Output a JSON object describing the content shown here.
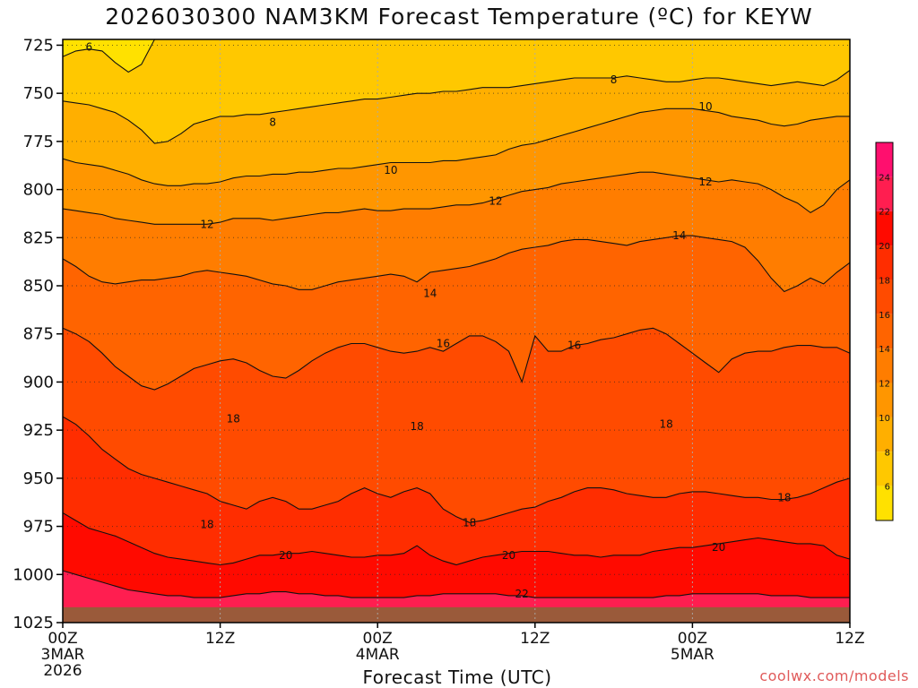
{
  "title": "2026030300 NAM3KM Forecast Temperature (ºC) for KEYW",
  "xlabel": "Forecast Time (UTC)",
  "credit": "coolwx.com/models",
  "chart_data": {
    "type": "heatmap",
    "title": "2026030300 NAM3KM Forecast Temperature (ºC) for KEYW",
    "xlabel": "Forecast Time (UTC)",
    "ylabel": "",
    "x_unit": "forecast hour",
    "xlim": [
      0,
      60
    ],
    "y_unit": "hPa",
    "ylim": [
      1025,
      722
    ],
    "y_ticks": [
      725,
      750,
      775,
      800,
      825,
      850,
      875,
      900,
      925,
      950,
      975,
      1000,
      1025
    ],
    "x_ticks": [
      {
        "hour": 0,
        "label": "00Z",
        "sub": [
          "3MAR",
          "2026"
        ]
      },
      {
        "hour": 12,
        "label": "12Z",
        "sub": []
      },
      {
        "hour": 24,
        "label": "00Z",
        "sub": [
          "4MAR"
        ]
      },
      {
        "hour": 36,
        "label": "12Z",
        "sub": []
      },
      {
        "hour": 48,
        "label": "00Z",
        "sub": [
          "5MAR"
        ]
      },
      {
        "hour": 60,
        "label": "12Z",
        "sub": []
      }
    ],
    "grid": true,
    "colorbar": {
      "placement": "right",
      "labels": [
        "6",
        "8",
        "10",
        "12",
        "14",
        "16",
        "18",
        "20",
        "22",
        "24"
      ],
      "levels": [
        4,
        6,
        8,
        10,
        12,
        14,
        16,
        18,
        20,
        22,
        24,
        26
      ],
      "colors": [
        "#ffe100",
        "#ffc800",
        "#ffaf00",
        "#ff9600",
        "#ff7d00",
        "#ff6400",
        "#ff4b00",
        "#ff2d00",
        "#ff0a00",
        "#ff1e50",
        "#ff0f6e"
      ]
    },
    "ground": {
      "color": "#9a5a3a",
      "top_hpa": 1017
    },
    "contours": [
      {
        "value": 6,
        "label_points": [
          [
            2,
            726
          ]
        ],
        "pressure": [
          731,
          728,
          727,
          728,
          734,
          739,
          735,
          722,
          722,
          722,
          722,
          722,
          722,
          722,
          722,
          722,
          722,
          722,
          722,
          722,
          722,
          722,
          722,
          722,
          722,
          722,
          722,
          722,
          722,
          722,
          722,
          722,
          722,
          722,
          722,
          722,
          722,
          722,
          722,
          722,
          722,
          722,
          722,
          722,
          722,
          722,
          722,
          722,
          722,
          722,
          722,
          722,
          722,
          722,
          722,
          722,
          722,
          722,
          722,
          722,
          722
        ]
      },
      {
        "value": 8,
        "label_points": [
          [
            16,
            765
          ],
          [
            42,
            743
          ]
        ],
        "pressure": [
          754,
          755,
          756,
          758,
          760,
          764,
          769,
          776,
          775,
          771,
          766,
          764,
          762,
          762,
          761,
          761,
          760,
          759,
          758,
          757,
          756,
          755,
          754,
          753,
          753,
          752,
          751,
          750,
          750,
          749,
          749,
          748,
          747,
          747,
          747,
          746,
          745,
          744,
          743,
          742,
          742,
          742,
          742,
          741,
          742,
          743,
          744,
          744,
          743,
          742,
          742,
          743,
          744,
          745,
          746,
          745,
          744,
          745,
          746,
          743,
          738
        ]
      },
      {
        "value": 10,
        "label_points": [
          [
            25,
            790
          ],
          [
            49,
            757
          ]
        ],
        "pressure": [
          784,
          786,
          787,
          788,
          790,
          792,
          795,
          797,
          798,
          798,
          797,
          797,
          796,
          794,
          793,
          793,
          792,
          792,
          791,
          791,
          790,
          789,
          789,
          788,
          787,
          786,
          786,
          786,
          786,
          785,
          785,
          784,
          783,
          782,
          779,
          777,
          776,
          774,
          772,
          770,
          768,
          766,
          764,
          762,
          760,
          759,
          758,
          758,
          758,
          759,
          760,
          762,
          763,
          764,
          766,
          767,
          766,
          764,
          763,
          762,
          762
        ]
      },
      {
        "value": 12,
        "label_points": [
          [
            11,
            818
          ],
          [
            33,
            806
          ],
          [
            49,
            796
          ]
        ],
        "pressure": [
          810,
          811,
          812,
          813,
          815,
          816,
          817,
          818,
          818,
          818,
          818,
          818,
          817,
          815,
          815,
          815,
          816,
          815,
          814,
          813,
          812,
          812,
          811,
          810,
          811,
          811,
          810,
          810,
          810,
          809,
          808,
          808,
          807,
          805,
          803,
          801,
          800,
          799,
          797,
          796,
          795,
          794,
          793,
          792,
          791,
          791,
          792,
          793,
          794,
          795,
          796,
          795,
          796,
          797,
          800,
          804,
          807,
          812,
          808,
          800,
          795
        ]
      },
      {
        "value": 14,
        "label_points": [
          [
            28,
            854
          ],
          [
            47,
            824
          ]
        ],
        "pressure": [
          836,
          840,
          845,
          848,
          849,
          848,
          847,
          847,
          846,
          845,
          843,
          842,
          843,
          844,
          845,
          847,
          849,
          850,
          852,
          852,
          850,
          848,
          847,
          846,
          845,
          844,
          845,
          848,
          843,
          842,
          841,
          840,
          838,
          836,
          833,
          831,
          830,
          829,
          827,
          826,
          826,
          827,
          828,
          829,
          827,
          826,
          825,
          824,
          824,
          825,
          826,
          827,
          830,
          837,
          846,
          853,
          850,
          846,
          849,
          843,
          838
        ]
      },
      {
        "value": 16,
        "label_points": [
          [
            29,
            880
          ],
          [
            39,
            881
          ]
        ],
        "pressure": [
          872,
          875,
          879,
          885,
          892,
          897,
          902,
          904,
          901,
          897,
          893,
          891,
          889,
          888,
          890,
          894,
          897,
          898,
          894,
          889,
          885,
          882,
          880,
          880,
          882,
          884,
          885,
          884,
          882,
          884,
          880,
          876,
          876,
          879,
          884,
          900,
          876,
          884,
          884,
          881,
          880,
          878,
          877,
          875,
          873,
          872,
          875,
          880,
          885,
          890,
          895,
          888,
          885,
          884,
          884,
          882,
          881,
          881,
          882,
          882,
          885
        ]
      },
      {
        "value": 18,
        "label_points": [
          [
            13,
            919
          ],
          [
            27,
            923
          ],
          [
            46,
            922
          ],
          [
            11,
            974
          ],
          [
            31,
            973
          ],
          [
            55,
            960
          ]
        ],
        "pressure": [
          918,
          922,
          928,
          935,
          940,
          945,
          948,
          950,
          952,
          954,
          956,
          958,
          962,
          964,
          966,
          962,
          960,
          962,
          966,
          966,
          964,
          962,
          958,
          955,
          958,
          960,
          957,
          955,
          958,
          966,
          970,
          973,
          972,
          970,
          968,
          966,
          965,
          962,
          960,
          957,
          955,
          955,
          956,
          958,
          959,
          960,
          960,
          958,
          957,
          957,
          958,
          959,
          960,
          960,
          961,
          961,
          960,
          958,
          955,
          952,
          950
        ]
      },
      {
        "value": 20,
        "label_points": [
          [
            17,
            990
          ],
          [
            34,
            990
          ],
          [
            50,
            986
          ]
        ],
        "pressure": [
          968,
          972,
          976,
          978,
          980,
          983,
          986,
          989,
          991,
          992,
          993,
          994,
          995,
          994,
          992,
          990,
          990,
          989,
          989,
          988,
          989,
          990,
          991,
          991,
          990,
          990,
          989,
          985,
          990,
          993,
          995,
          993,
          991,
          990,
          989,
          988,
          988,
          988,
          989,
          990,
          990,
          991,
          990,
          990,
          990,
          988,
          987,
          986,
          986,
          985,
          984,
          983,
          982,
          981,
          982,
          983,
          984,
          984,
          985,
          990,
          992
        ]
      },
      {
        "value": 22,
        "label_points": [
          [
            35,
            1010
          ]
        ],
        "pressure": [
          998,
          1000,
          1002,
          1004,
          1006,
          1008,
          1009,
          1010,
          1011,
          1011,
          1012,
          1012,
          1012,
          1011,
          1010,
          1010,
          1009,
          1009,
          1010,
          1010,
          1011,
          1011,
          1012,
          1012,
          1012,
          1012,
          1012,
          1011,
          1011,
          1010,
          1010,
          1010,
          1010,
          1010,
          1011,
          1011,
          1012,
          1012,
          1012,
          1012,
          1012,
          1012,
          1012,
          1012,
          1012,
          1012,
          1011,
          1011,
          1010,
          1010,
          1010,
          1010,
          1010,
          1010,
          1011,
          1011,
          1011,
          1012,
          1012,
          1012,
          1012
        ]
      }
    ]
  }
}
